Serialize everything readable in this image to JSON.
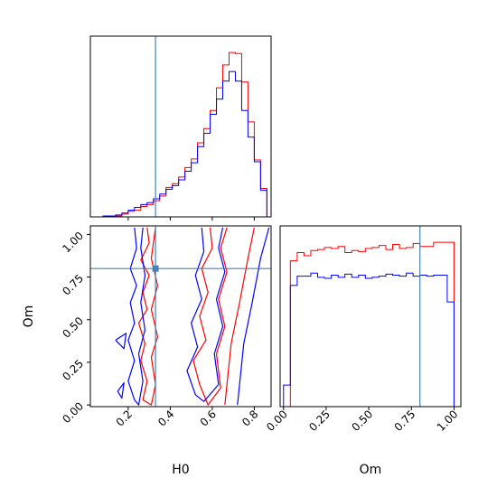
{
  "chart_data": [
    {
      "panel": "H0 marginal",
      "type": "histogram-step",
      "xlim": [
        0.02,
        0.88
      ],
      "truth_x": 0.33,
      "bin_edges": [
        0.02,
        0.05,
        0.08,
        0.11,
        0.14,
        0.17,
        0.2,
        0.23,
        0.26,
        0.29,
        0.32,
        0.35,
        0.38,
        0.41,
        0.44,
        0.47,
        0.5,
        0.53,
        0.56,
        0.59,
        0.62,
        0.65,
        0.68,
        0.71,
        0.74,
        0.77,
        0.8,
        0.83,
        0.86
      ],
      "series": [
        {
          "color": "#ff0000",
          "values": [
            0,
            0,
            0,
            1,
            1,
            3,
            6,
            7,
            11,
            13,
            17,
            22,
            31,
            35,
            42,
            52,
            61,
            78,
            93,
            112,
            136,
            160,
            173,
            172,
            142,
            100,
            60,
            30
          ]
        },
        {
          "color": "#0000ff",
          "values": [
            0,
            0,
            1,
            1,
            2,
            4,
            7,
            10,
            13,
            15,
            19,
            24,
            29,
            33,
            39,
            48,
            57,
            74,
            88,
            108,
            124,
            143,
            153,
            143,
            112,
            84,
            58,
            28
          ]
        }
      ]
    },
    {
      "panel": "H0-Om joint",
      "type": "contour",
      "xlim": [
        0.02,
        0.88
      ],
      "ylim": [
        -0.01,
        1.05
      ],
      "xlabel": "H0",
      "ylabel": "Om",
      "x_ticks": [
        "0.2",
        "0.4",
        "0.6",
        "0.8"
      ],
      "y_ticks": [
        "0.00",
        "0.25",
        "0.50",
        "0.75",
        "1.00"
      ],
      "truth": [
        0.33,
        0.8
      ],
      "series": [
        {
          "color": "#ff0000",
          "contours": [
            [
              [
                0.29,
                1.04
              ],
              [
                0.3,
                0.95
              ],
              [
                0.26,
                0.85
              ],
              [
                0.3,
                0.76
              ],
              [
                0.27,
                0.66
              ],
              [
                0.29,
                0.56
              ],
              [
                0.25,
                0.48
              ],
              [
                0.28,
                0.36
              ],
              [
                0.26,
                0.26
              ],
              [
                0.29,
                0.14
              ],
              [
                0.27,
                0.03
              ],
              [
                0.31,
                0.0
              ],
              [
                0.33,
                0.12
              ],
              [
                0.31,
                0.28
              ],
              [
                0.34,
                0.4
              ],
              [
                0.31,
                0.56
              ],
              [
                0.34,
                0.7
              ],
              [
                0.31,
                0.86
              ],
              [
                0.33,
                1.04
              ]
            ],
            [
              [
                0.59,
                1.04
              ],
              [
                0.6,
                0.92
              ],
              [
                0.55,
                0.8
              ],
              [
                0.58,
                0.66
              ],
              [
                0.54,
                0.52
              ],
              [
                0.57,
                0.38
              ],
              [
                0.51,
                0.26
              ],
              [
                0.54,
                0.12
              ],
              [
                0.58,
                0.0
              ],
              [
                0.64,
                0.1
              ],
              [
                0.62,
                0.3
              ],
              [
                0.66,
                0.46
              ],
              [
                0.63,
                0.62
              ],
              [
                0.67,
                0.78
              ],
              [
                0.64,
                0.92
              ],
              [
                0.67,
                1.04
              ]
            ],
            [
              [
                0.8,
                1.04
              ],
              [
                0.77,
                0.86
              ],
              [
                0.73,
                0.6
              ],
              [
                0.69,
                0.36
              ],
              [
                0.67,
                0.12
              ],
              [
                0.66,
                0.0
              ]
            ]
          ]
        },
        {
          "color": "#0000ff",
          "contours": [
            [
              [
                0.23,
                1.04
              ],
              [
                0.24,
                0.92
              ],
              [
                0.21,
                0.8
              ],
              [
                0.24,
                0.7
              ],
              [
                0.21,
                0.6
              ],
              [
                0.23,
                0.48
              ],
              [
                0.2,
                0.38
              ],
              [
                0.23,
                0.26
              ],
              [
                0.2,
                0.14
              ],
              [
                0.23,
                0.03
              ],
              [
                0.25,
                0.0
              ],
              [
                0.27,
                0.14
              ],
              [
                0.25,
                0.3
              ],
              [
                0.28,
                0.44
              ],
              [
                0.26,
                0.6
              ],
              [
                0.28,
                0.76
              ],
              [
                0.26,
                0.92
              ],
              [
                0.27,
                1.04
              ]
            ],
            [
              [
                0.14,
                0.38
              ],
              [
                0.19,
                0.42
              ],
              [
                0.18,
                0.33
              ],
              [
                0.14,
                0.38
              ]
            ],
            [
              [
                0.15,
                0.08
              ],
              [
                0.18,
                0.13
              ],
              [
                0.17,
                0.04
              ],
              [
                0.15,
                0.08
              ]
            ],
            [
              [
                0.55,
                1.04
              ],
              [
                0.56,
                0.9
              ],
              [
                0.52,
                0.76
              ],
              [
                0.55,
                0.62
              ],
              [
                0.5,
                0.48
              ],
              [
                0.53,
                0.34
              ],
              [
                0.48,
                0.2
              ],
              [
                0.52,
                0.06
              ],
              [
                0.56,
                0.02
              ],
              [
                0.63,
                0.12
              ],
              [
                0.61,
                0.3
              ],
              [
                0.65,
                0.46
              ],
              [
                0.62,
                0.62
              ],
              [
                0.66,
                0.78
              ],
              [
                0.63,
                0.92
              ],
              [
                0.65,
                1.04
              ]
            ],
            [
              [
                0.87,
                1.04
              ],
              [
                0.83,
                0.86
              ],
              [
                0.79,
                0.6
              ],
              [
                0.75,
                0.36
              ],
              [
                0.73,
                0.12
              ],
              [
                0.72,
                0.0
              ]
            ]
          ]
        }
      ]
    },
    {
      "panel": "Om marginal",
      "type": "histogram-step",
      "xlim": [
        -0.02,
        1.04
      ],
      "xlabel": "Om",
      "x_ticks": [
        "0.00",
        "0.25",
        "0.50",
        "0.75",
        "1.00"
      ],
      "truth_x": 0.8,
      "bin_edges": [
        0.0,
        0.04,
        0.08,
        0.12,
        0.16,
        0.2,
        0.24,
        0.28,
        0.32,
        0.36,
        0.4,
        0.44,
        0.48,
        0.52,
        0.56,
        0.6,
        0.64,
        0.68,
        0.72,
        0.76,
        0.8,
        0.84,
        0.88,
        0.92,
        0.96,
        1.0
      ],
      "series": [
        {
          "color": "#ff0000",
          "values": [
            0,
            142,
            150,
            147,
            152,
            153,
            155,
            154,
            156,
            150,
            152,
            151,
            154,
            155,
            157,
            153,
            158,
            154,
            155,
            159,
            156,
            156,
            160,
            160,
            160
          ]
        },
        {
          "color": "#0000ff",
          "values": [
            21,
            118,
            127,
            127,
            130,
            126,
            125,
            128,
            126,
            129,
            126,
            128,
            125,
            126,
            127,
            129,
            128,
            127,
            130,
            127,
            128,
            127,
            128,
            128,
            102
          ]
        }
      ]
    }
  ]
}
